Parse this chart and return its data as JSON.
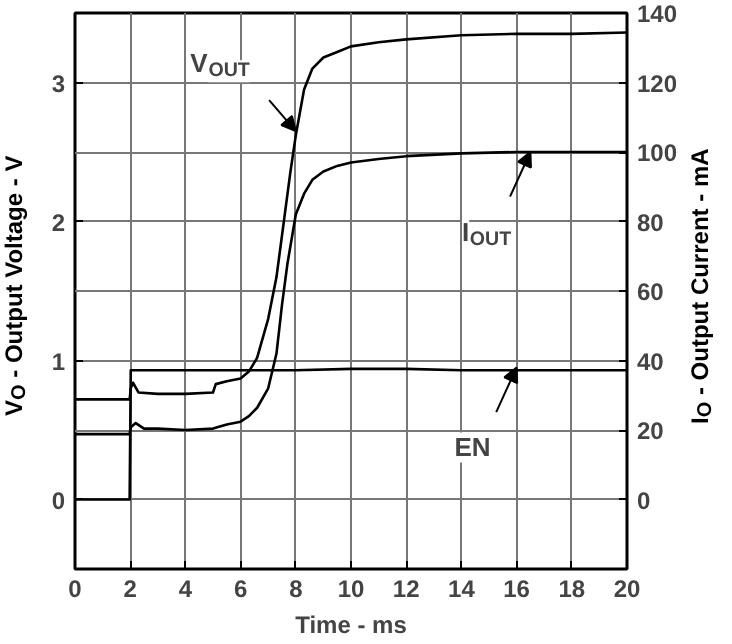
{
  "chart_data": {
    "type": "line",
    "xlabel": "Time - ms",
    "ylabel": "V$_{O}$ - Output Voltage - V",
    "y2label": "I$_{O}$ - Output Current - mA",
    "xlim": [
      0,
      20
    ],
    "xticks": [
      0,
      2,
      4,
      6,
      8,
      10,
      12,
      14,
      16,
      18,
      20
    ],
    "ylim": [
      -0.5,
      3.5
    ],
    "yticks": [
      0,
      1,
      2,
      3
    ],
    "y2lim": [
      -20,
      140
    ],
    "y2ticks": [
      0,
      20,
      40,
      60,
      80,
      100,
      120,
      140
    ],
    "grid": true,
    "series": [
      {
        "color": "#000000",
        "x": [
          0,
          1.98,
          2.02,
          2.1,
          2.3,
          3,
          4,
          5,
          5.1,
          5.5,
          6,
          6.3,
          6.6,
          7,
          7.3,
          7.6,
          7.8,
          8,
          8.3,
          8.6,
          9,
          9.5,
          10,
          11,
          12,
          14,
          16,
          18,
          20
        ],
        "values": [
          0.72,
          0.72,
          0.8,
          0.84,
          0.77,
          0.76,
          0.76,
          0.77,
          0.83,
          0.85,
          0.87,
          0.92,
          1.02,
          1.3,
          1.6,
          2.05,
          2.35,
          2.62,
          2.95,
          3.1,
          3.18,
          3.22,
          3.26,
          3.29,
          3.31,
          3.34,
          3.35,
          3.35,
          3.36
        ]
      },
      {
        "color": "#000000",
        "axis": "y2",
        "x": [
          0,
          1.98,
          2.02,
          2.2,
          2.5,
          3,
          4,
          5,
          5.5,
          6,
          6.3,
          6.6,
          7,
          7.3,
          7.5,
          7.7,
          8,
          8.3,
          8.6,
          9,
          9.5,
          10,
          11,
          12,
          14,
          16,
          18,
          20
        ],
        "values": [
          18.8,
          18.8,
          20.8,
          22,
          20.4,
          20.4,
          20,
          20.4,
          21.6,
          22.4,
          24,
          26.4,
          32,
          42,
          56,
          68,
          82,
          88,
          92,
          94.4,
          96,
          97,
          98,
          98.8,
          99.6,
          100,
          100,
          100
        ]
      },
      {
        "color": "#000000",
        "x": [
          0,
          1.98,
          2.02,
          4,
          6,
          8,
          10,
          12,
          14,
          16,
          18,
          20
        ],
        "values": [
          0,
          0,
          0.93,
          0.93,
          0.93,
          0.93,
          0.94,
          0.94,
          0.93,
          0.93,
          0.93,
          0.93
        ]
      }
    ],
    "annotations": [
      {
        "text": "V$_{OUT}$",
        "x": 8,
        "y": 2.65
      },
      {
        "text": "I$_{OUT}$",
        "x": 16.5,
        "y": 2.5
      },
      {
        "text": "EN",
        "x": 16,
        "y": 0.95
      }
    ]
  }
}
